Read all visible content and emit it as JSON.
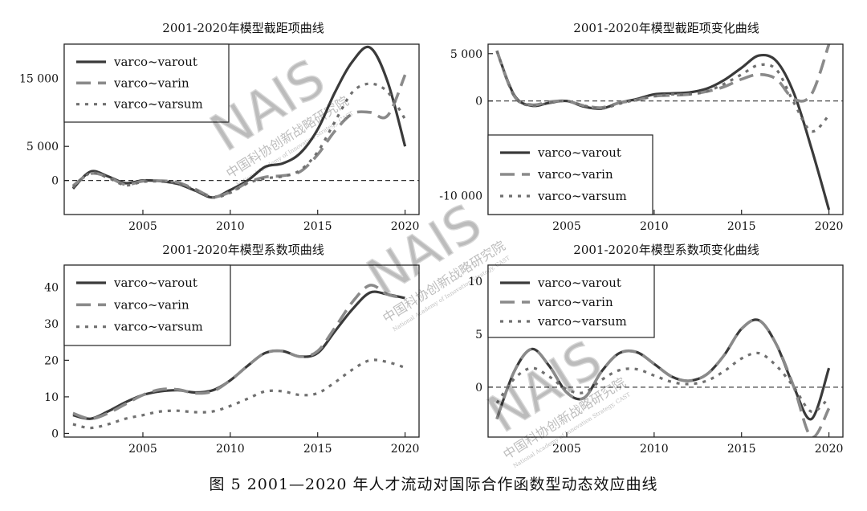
{
  "caption": "图 5   2001—2020 年人才流动对国际合作函数型动态效应曲线",
  "watermark": {
    "main": "NAIS",
    "cn": "中国科协创新战略研究院",
    "en": "National Academy of Innovation Strategy, CAST"
  },
  "chart_data": [
    {
      "type": "line",
      "title": "2001-2020年模型截距项曲线",
      "x": [
        2001,
        2002,
        2003,
        2004,
        2005,
        2006,
        2007,
        2008,
        2009,
        2010,
        2011,
        2012,
        2013,
        2014,
        2015,
        2016,
        2017,
        2018,
        2019,
        2020
      ],
      "xticks": [
        2005,
        2010,
        2015,
        2020
      ],
      "yticks": [
        0,
        5000,
        15000
      ],
      "ytick_labels": [
        "0",
        "5 000",
        "15 000"
      ],
      "xlim": [
        2000.5,
        2020.8
      ],
      "ylim": [
        -5000,
        20000
      ],
      "zero_line": true,
      "legend_position": "top-left",
      "grid": false,
      "series": [
        {
          "name": "varco~varout",
          "values": [
            -1200,
            1300,
            600,
            -400,
            0,
            -100,
            -500,
            -1500,
            -2500,
            -1400,
            0,
            2000,
            2500,
            4000,
            7500,
            13000,
            17500,
            19500,
            14500,
            5000
          ]
        },
        {
          "name": "varco~varin",
          "values": [
            -800,
            1000,
            500,
            -600,
            -100,
            -50,
            -300,
            -1300,
            -2400,
            -1700,
            -300,
            500,
            700,
            1300,
            3800,
            7300,
            9800,
            10000,
            9500,
            15500
          ]
        },
        {
          "name": "varco~varsum",
          "values": [
            -1000,
            1100,
            400,
            -700,
            -200,
            -150,
            -450,
            -1400,
            -2500,
            -1800,
            -400,
            300,
            600,
            1500,
            4200,
            8700,
            13000,
            14200,
            13000,
            9000
          ]
        }
      ]
    },
    {
      "type": "line",
      "title": "2001-2020年模型截距项变化曲线",
      "x": [
        2001,
        2002,
        2003,
        2004,
        2005,
        2006,
        2007,
        2008,
        2009,
        2010,
        2011,
        2012,
        2013,
        2014,
        2015,
        2016,
        2017,
        2018,
        2019,
        2020
      ],
      "xticks": [
        2005,
        2010,
        2015,
        2020
      ],
      "yticks": [
        -10000,
        0,
        5000
      ],
      "ytick_labels": [
        "-10 000",
        "0",
        "5 000"
      ],
      "xlim": [
        2000.5,
        2020.8
      ],
      "ylim": [
        -12000,
        6000
      ],
      "zero_line": true,
      "legend_position": "bottom-left",
      "grid": false,
      "series": [
        {
          "name": "varco~varout",
          "values": [
            5300,
            600,
            -500,
            -200,
            0,
            -600,
            -800,
            -200,
            200,
            700,
            800,
            900,
            1300,
            2200,
            3500,
            4800,
            4200,
            800,
            -5000,
            -11500
          ]
        },
        {
          "name": "varco~varin",
          "values": [
            5300,
            500,
            -400,
            -100,
            0,
            -500,
            -700,
            -200,
            100,
            500,
            600,
            700,
            1000,
            1500,
            2300,
            2800,
            2300,
            200,
            700,
            6000
          ]
        },
        {
          "name": "varco~varsum",
          "values": [
            5300,
            500,
            -500,
            -200,
            0,
            -500,
            -800,
            -300,
            150,
            500,
            700,
            700,
            1000,
            1800,
            2800,
            3800,
            3300,
            -200,
            -3200,
            -1500
          ]
        }
      ]
    },
    {
      "type": "line",
      "title": "2001-2020年模型系数项曲线",
      "x": [
        2001,
        2002,
        2003,
        2004,
        2005,
        2006,
        2007,
        2008,
        2009,
        2010,
        2011,
        2012,
        2013,
        2014,
        2015,
        2016,
        2017,
        2018,
        2019,
        2020
      ],
      "xticks": [
        2005,
        2010,
        2015,
        2020
      ],
      "yticks": [
        0,
        10,
        20,
        30,
        40
      ],
      "ytick_labels": [
        "0",
        "10",
        "20",
        "30",
        "40"
      ],
      "xlim": [
        2000.5,
        2020.8
      ],
      "ylim": [
        -1,
        46
      ],
      "zero_line": false,
      "legend_position": "top-left",
      "grid": false,
      "series": [
        {
          "name": "varco~varout",
          "values": [
            5,
            4,
            6,
            8.5,
            10.5,
            11.5,
            11.8,
            11.2,
            11.8,
            14.5,
            18.5,
            22,
            22.5,
            21,
            22,
            28,
            34,
            38.5,
            38,
            37
          ]
        },
        {
          "name": "varco~varin",
          "values": [
            5.5,
            4,
            5.5,
            8,
            10.5,
            12,
            12,
            11,
            11.5,
            14.5,
            18.5,
            22,
            22.5,
            21,
            22.5,
            29,
            36,
            40.5,
            38,
            37
          ]
        },
        {
          "name": "varco~varsum",
          "values": [
            2.5,
            1.5,
            2.5,
            4,
            5,
            6,
            6.2,
            5.8,
            6,
            7.5,
            9.5,
            11.5,
            11.5,
            10.5,
            11,
            14,
            17.5,
            20,
            19.5,
            18
          ]
        }
      ]
    },
    {
      "type": "line",
      "title": "2001-2020年模型系数项变化曲线",
      "x": [
        2001,
        2002,
        2003,
        2004,
        2005,
        2006,
        2007,
        2008,
        2009,
        2010,
        2011,
        2012,
        2013,
        2014,
        2015,
        2016,
        2017,
        2018,
        2019,
        2020
      ],
      "xticks": [
        2005,
        2010,
        2015,
        2020
      ],
      "yticks": [
        0,
        5,
        10
      ],
      "ytick_labels": [
        "0",
        "5",
        "10"
      ],
      "xlim": [
        2000.5,
        2020.8
      ],
      "ylim": [
        -4.7,
        11.5
      ],
      "zero_line": true,
      "legend_position": "top-left",
      "grid": false,
      "series": [
        {
          "name": "varco~varout",
          "values": [
            -3,
            1.5,
            3.6,
            2,
            -0.5,
            -1,
            1.5,
            3.2,
            3.3,
            2.2,
            1,
            0.6,
            1.2,
            3,
            5.5,
            6.3,
            4,
            0,
            -3,
            1.8
          ]
        },
        {
          "name": "varco~varin",
          "values": [
            -3,
            1.5,
            3.6,
            2,
            -0.5,
            -1,
            1.5,
            3.2,
            3.3,
            2.2,
            1,
            0.6,
            1.2,
            3,
            5.5,
            6.3,
            4,
            0,
            -4.7,
            -2
          ]
        },
        {
          "name": "varco~varsum",
          "values": [
            -1.5,
            0.8,
            1.8,
            1,
            -0.2,
            -0.5,
            0.7,
            1.6,
            1.7,
            1.1,
            0.5,
            0.3,
            0.6,
            1.5,
            2.7,
            3.2,
            2,
            0,
            -2.3,
            -1
          ]
        }
      ]
    }
  ],
  "style": {
    "series_colors": [
      "#3a3a3a",
      "#8a8a8a",
      "#707070"
    ]
  }
}
